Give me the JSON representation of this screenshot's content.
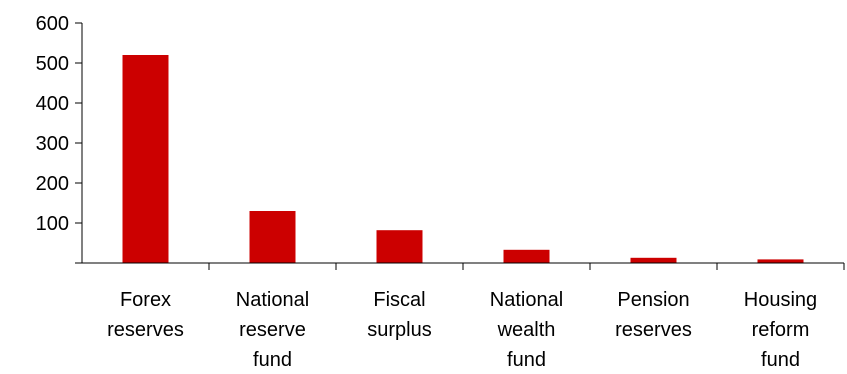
{
  "chart_data": {
    "type": "bar",
    "categories": [
      [
        "Forex",
        "reserves"
      ],
      [
        "National",
        "reserve",
        "fund"
      ],
      [
        "Fiscal",
        "surplus"
      ],
      [
        "National",
        "wealth",
        "fund"
      ],
      [
        "Pension",
        "reserves"
      ],
      [
        "Housing",
        "reform",
        "fund"
      ]
    ],
    "values": [
      520,
      130,
      82,
      33,
      13,
      9
    ],
    "ylim": [
      0,
      600
    ],
    "yticks": [
      100,
      200,
      300,
      400,
      500,
      600
    ],
    "grid": false,
    "legend": "none",
    "bar_color": "#cc0000"
  }
}
